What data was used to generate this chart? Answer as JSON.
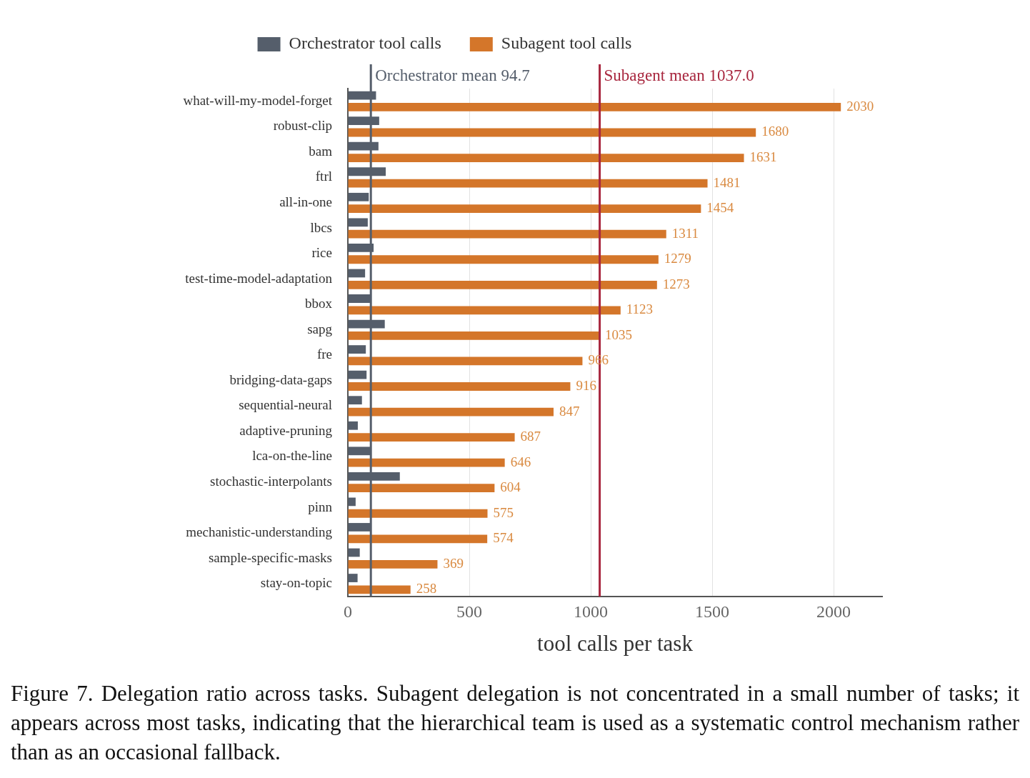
{
  "chart_data": {
    "type": "bar",
    "orientation": "horizontal",
    "xlabel": "tool calls per task",
    "categories": [
      "what-will-my-model-forget",
      "robust-clip",
      "bam",
      "ftrl",
      "all-in-one",
      "lbcs",
      "rice",
      "test-time-model-adaptation",
      "bbox",
      "sapg",
      "fre",
      "bridging-data-gaps",
      "sequential-neural",
      "adaptive-pruning",
      "lca-on-the-line",
      "stochastic-interpolants",
      "pinn",
      "mechanistic-understanding",
      "sample-specific-masks",
      "stay-on-topic"
    ],
    "series": [
      {
        "name": "Orchestrator tool calls",
        "color": "#555e6b",
        "values": [
          116,
          129,
          126,
          156,
          86,
          82,
          106,
          71,
          95,
          152,
          74,
          77,
          58,
          41,
          94,
          214,
          32,
          94,
          49,
          40
        ]
      },
      {
        "name": "Subagent tool calls",
        "color": "#d4762a",
        "values": [
          2030,
          1680,
          1631,
          1481,
          1454,
          1311,
          1279,
          1273,
          1123,
          1035,
          966,
          916,
          847,
          687,
          646,
          604,
          575,
          574,
          369,
          258
        ],
        "value_labels": [
          "2030",
          "1680",
          "1631",
          "1481",
          "1454",
          "1311",
          "1279",
          "1273",
          "1123",
          "1035",
          "966",
          "916",
          "847",
          "687",
          "646",
          "604",
          "575",
          "574",
          "369",
          "258"
        ]
      }
    ],
    "xlim": [
      0,
      2200
    ],
    "xticks": [
      0,
      500,
      1000,
      1500,
      2000
    ],
    "grid": "x",
    "legend": "top",
    "ref_lines": [
      {
        "axis": "x",
        "value": 94.7,
        "label": "Orchestrator mean 94.7",
        "color": "#555e6b"
      },
      {
        "axis": "x",
        "value": 1037.0,
        "label": "Subagent mean 1037.0",
        "color": "#a8263e"
      }
    ],
    "annotations": [
      "Figure 7.  Delegation ratio across tasks.  Subagent delegation is not concentrated in a small number of tasks; it appears across most tasks, indicating that the hierarchical team is used as a systematic control mechanism rather than as an occasional fallback."
    ]
  }
}
